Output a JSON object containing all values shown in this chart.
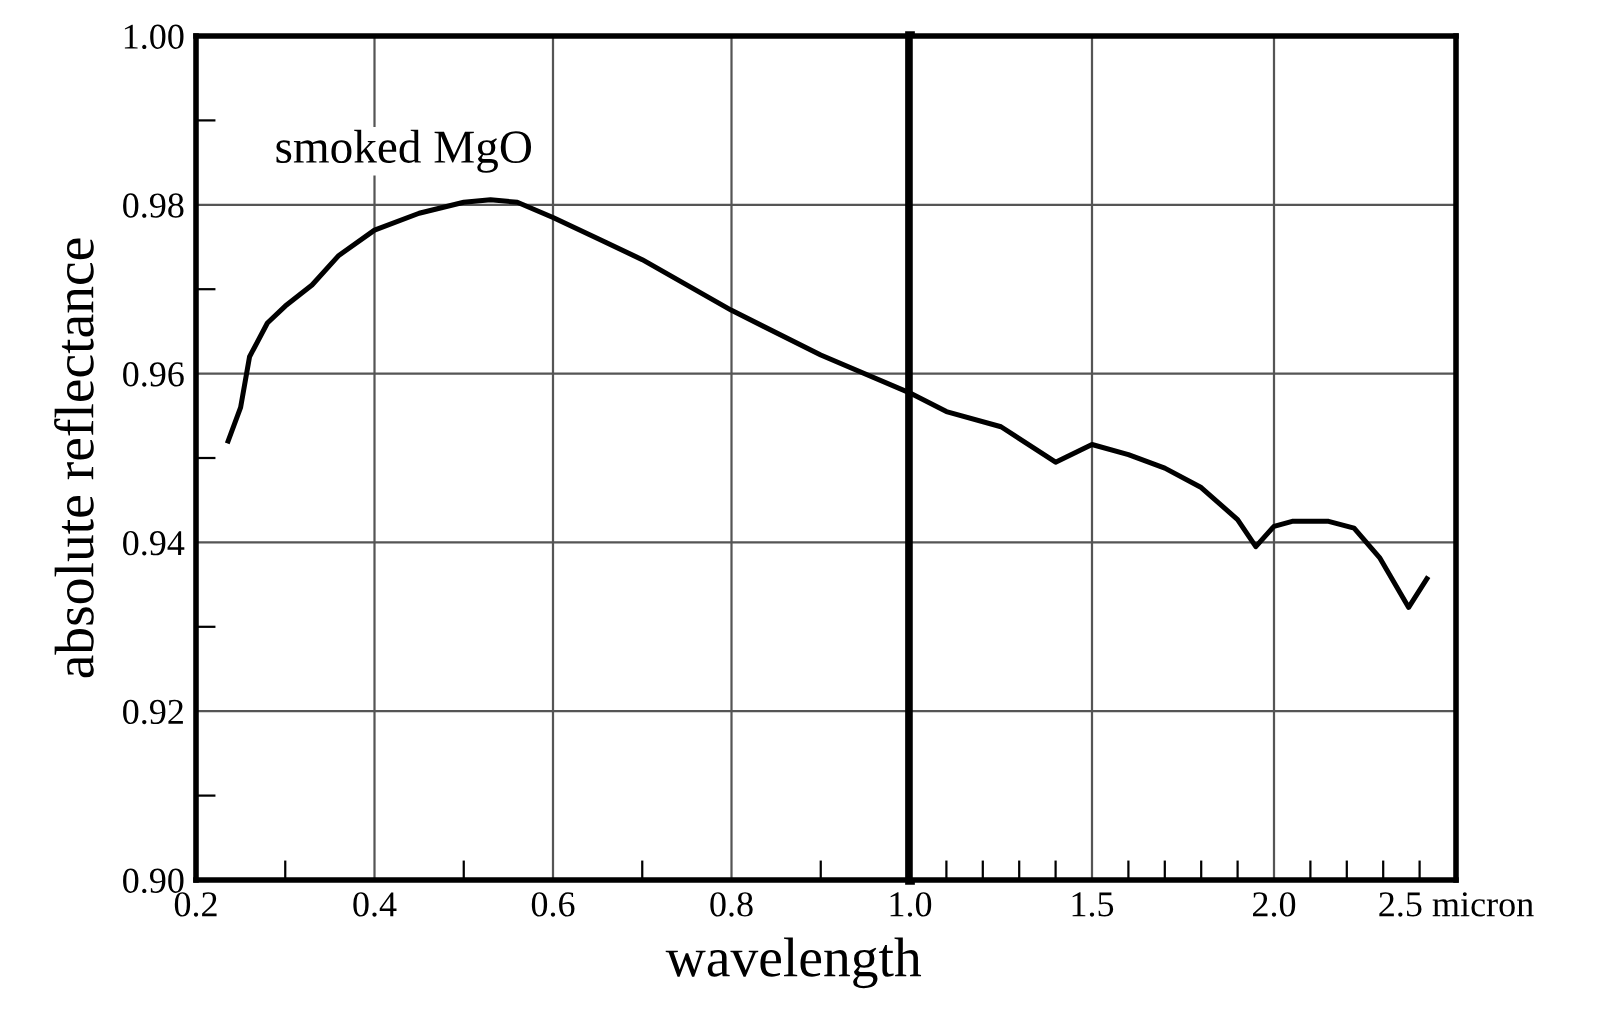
{
  "chart_data": [
    {
      "type": "line",
      "ylabel": "absolute reflectance",
      "xlabel": "wavelength",
      "annotations": [
        "smoked MgO"
      ],
      "xlim": [
        0.2,
        1.0
      ],
      "ylim": [
        0.9,
        1.0
      ],
      "xticks": [
        0.2,
        0.4,
        0.6,
        0.8,
        {
          "value": 0.3,
          "label": null
        },
        {
          "value": 0.5,
          "label": null
        },
        {
          "value": 0.7,
          "label": null
        },
        {
          "value": 0.9,
          "label": null
        }
      ],
      "yticks": [
        {
          "value": 0.9,
          "label": "0.90"
        },
        0.92,
        0.94,
        0.96,
        0.98,
        {
          "value": 1.0,
          "label": "1.00"
        },
        {
          "value": 0.91,
          "label": null
        },
        {
          "value": 0.93,
          "label": null
        },
        {
          "value": 0.95,
          "label": null
        },
        {
          "value": 0.97,
          "label": null
        },
        {
          "value": 0.99,
          "label": null
        }
      ],
      "grid": true,
      "marker": "none",
      "line_style": "solid",
      "series": [
        {
          "color": "#000000",
          "x": [
            0.236,
            0.25,
            0.26,
            0.28,
            0.3,
            0.33,
            0.36,
            0.4,
            0.45,
            0.5,
            0.53,
            0.56,
            0.6,
            0.65,
            0.7,
            0.8,
            0.9,
            1.0
          ],
          "values": [
            0.952,
            0.956,
            0.962,
            0.966,
            0.968,
            0.9705,
            0.974,
            0.977,
            0.979,
            0.9803,
            0.9806,
            0.9803,
            0.9785,
            0.976,
            0.9735,
            0.9675,
            0.9622,
            0.9577
          ]
        }
      ]
    },
    {
      "type": "line",
      "tick_labels": "x",
      "xlim": [
        1.0,
        2.5
      ],
      "ylim": [
        0.9,
        1.0
      ],
      "xticks": [
        {
          "value": 1.0,
          "label": "1.0"
        },
        1.5,
        {
          "value": 2.0,
          "label": "2.0"
        },
        {
          "value": 2.5,
          "label": "2.5 micron"
        },
        {
          "value": 1.1,
          "label": null
        },
        {
          "value": 1.2,
          "label": null
        },
        {
          "value": 1.3,
          "label": null
        },
        {
          "value": 1.4,
          "label": null
        },
        {
          "value": 1.6,
          "label": null
        },
        {
          "value": 1.7,
          "label": null
        },
        {
          "value": 1.8,
          "label": null
        },
        {
          "value": 1.9,
          "label": null
        },
        {
          "value": 2.1,
          "label": null
        },
        {
          "value": 2.2,
          "label": null
        },
        {
          "value": 2.3,
          "label": null
        },
        {
          "value": 2.4,
          "label": null
        }
      ],
      "yticks": [
        0.9,
        0.92,
        0.94,
        0.96,
        0.98,
        1.0
      ],
      "grid": true,
      "marker": "none",
      "line_style": "solid",
      "series": [
        {
          "color": "#000000",
          "x": [
            1.0,
            1.1,
            1.25,
            1.4,
            1.5,
            1.6,
            1.7,
            1.8,
            1.9,
            1.95,
            2.0,
            2.05,
            2.15,
            2.22,
            2.29,
            2.37,
            2.42
          ],
          "values": [
            0.9577,
            0.9555,
            0.9537,
            0.9495,
            0.9516,
            0.9504,
            0.9488,
            0.9465,
            0.9427,
            0.9395,
            0.9419,
            0.9425,
            0.9425,
            0.9417,
            0.9382,
            0.9323,
            0.9357
          ]
        }
      ]
    }
  ]
}
